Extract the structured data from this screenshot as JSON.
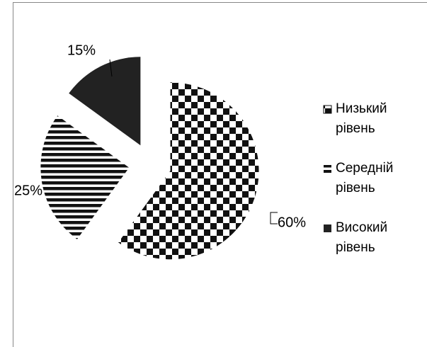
{
  "chart_data": {
    "type": "pie",
    "categories": [
      "Низький рівень",
      "Середній рівень",
      "Високий рівень"
    ],
    "values": [
      60,
      25,
      15
    ],
    "value_labels": [
      "60%",
      "25%",
      "15%"
    ],
    "legend": "right"
  }
}
